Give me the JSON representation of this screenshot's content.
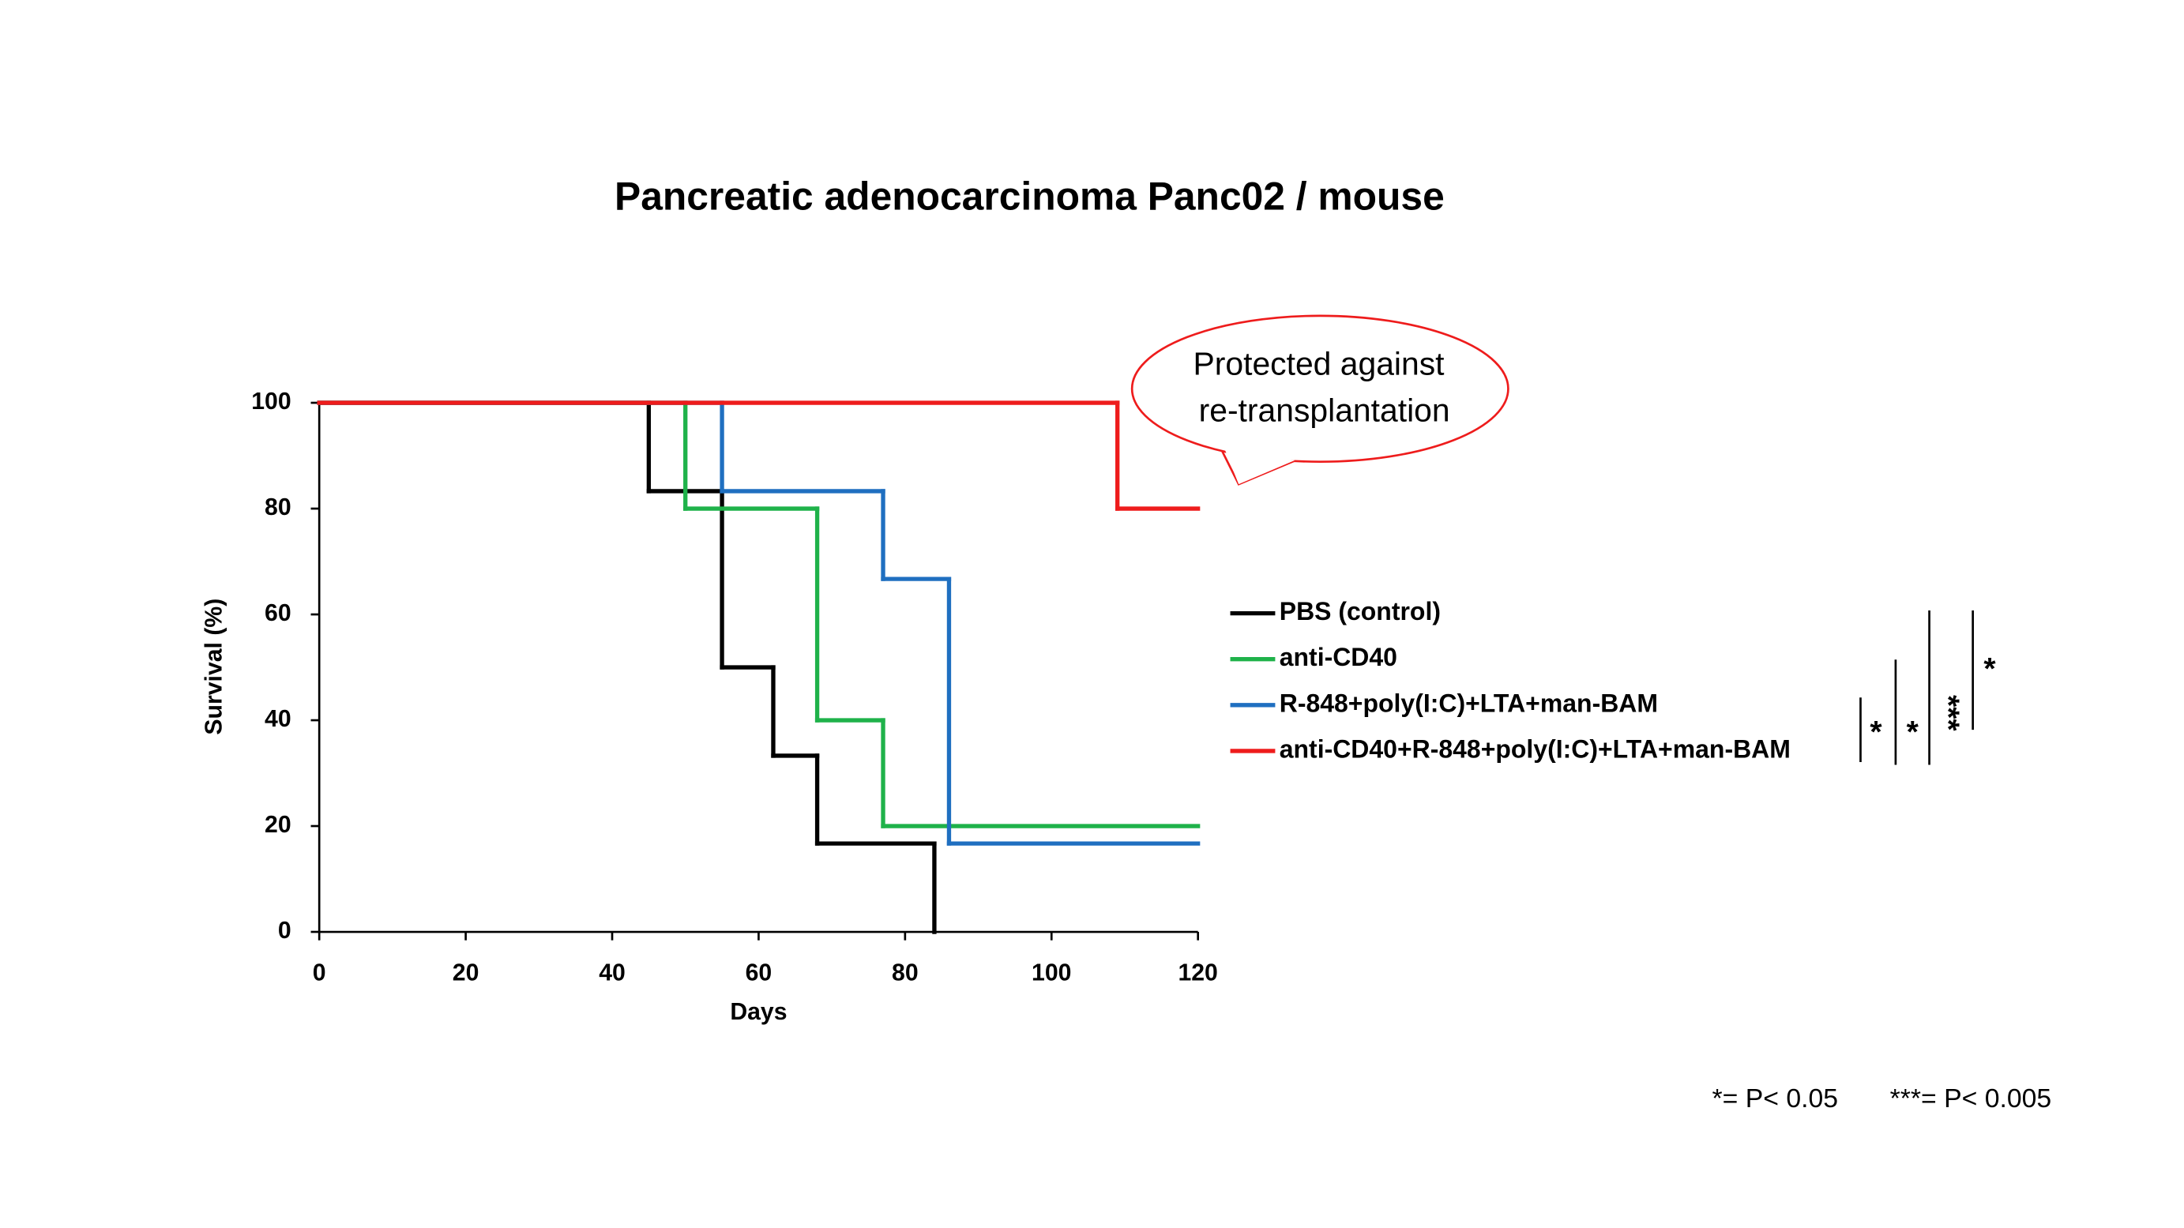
{
  "chart_data": {
    "type": "step-line",
    "title": "Pancreatic adenocarcinoma Panc02 / mouse",
    "x_label": "Days",
    "y_label": "Survival (%)",
    "xlim": [
      0,
      120
    ],
    "xticks": [
      0,
      20,
      40,
      60,
      80,
      100,
      120
    ],
    "ylim": [
      0,
      100
    ],
    "yticks": [
      0,
      20,
      40,
      60,
      80,
      100
    ],
    "grid": false,
    "series": [
      {
        "name": "PBS (control)",
        "color": "#000000",
        "x": [
          0,
          45,
          55,
          62,
          68,
          84
        ],
        "values": [
          100,
          83.3,
          50,
          33.3,
          16.7,
          0
        ]
      },
      {
        "name": "anti-CD40",
        "color": "#1fb24a",
        "x": [
          0,
          50,
          68,
          77,
          120
        ],
        "values": [
          100,
          80,
          40,
          20,
          20
        ]
      },
      {
        "name": "R-848+poly(I:C)+LTA+man-BAM",
        "color": "#1f6fc0",
        "x": [
          0,
          55,
          77,
          86,
          120
        ],
        "values": [
          100,
          83.3,
          66.7,
          16.7,
          16.7
        ]
      },
      {
        "name": "anti-CD40+R-848+poly(I:C)+LTA+man-BAM",
        "color": "#ee1c1c",
        "x": [
          0,
          109,
          120
        ],
        "values": [
          100,
          80,
          80
        ]
      }
    ],
    "callout": [
      "Protected against",
      "re-transplantation"
    ],
    "significance": [
      "*",
      "*",
      "***",
      "*"
    ],
    "footnote": [
      "*= P< 0.05",
      "***= P< 0.005"
    ]
  }
}
